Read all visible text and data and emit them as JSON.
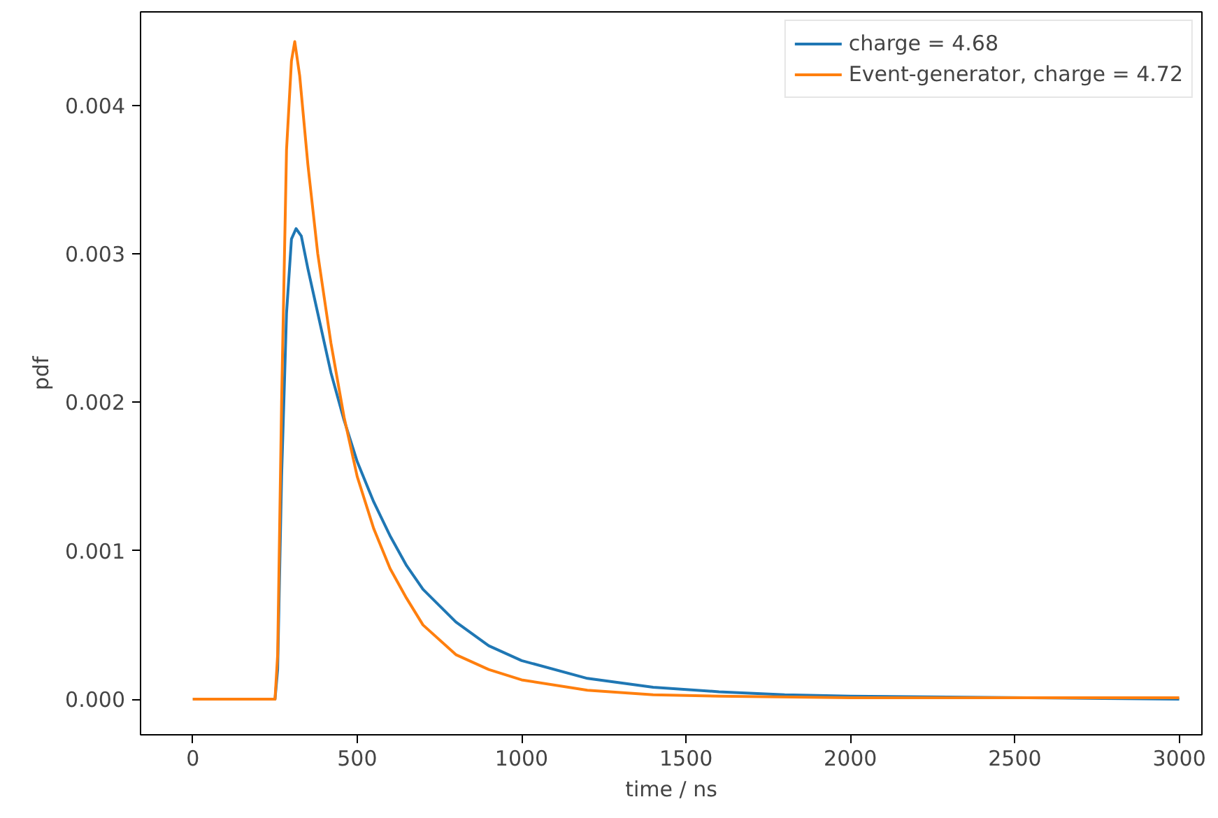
{
  "chart_data": {
    "type": "line",
    "xlabel": "time / ns",
    "ylabel": "pdf",
    "xlim": [
      -159,
      3069
    ],
    "ylim": [
      -0.00024,
      0.00463
    ],
    "xticks": [
      0,
      500,
      1000,
      1500,
      2000,
      2500,
      3000
    ],
    "yticks": [
      {
        "value": 0,
        "label": "0.000"
      },
      {
        "value": 0.001,
        "label": "0.001"
      },
      {
        "value": 0.002,
        "label": "0.002"
      },
      {
        "value": 0.003,
        "label": "0.003"
      },
      {
        "value": 0.004,
        "label": "0.004"
      }
    ],
    "grid": false,
    "legend": "top right",
    "line_style": "solid",
    "marker": "none",
    "series": [
      {
        "name": "charge = 4.68",
        "color": "#1f77b4",
        "x": [
          0,
          250,
          258,
          270,
          285,
          300,
          314,
          330,
          350,
          380,
          420,
          460,
          500,
          550,
          600,
          650,
          700,
          800,
          900,
          1000,
          1200,
          1400,
          1600,
          1800,
          2000,
          3000
        ],
        "values": [
          0,
          0,
          0.0002,
          0.0015,
          0.0026,
          0.0031,
          0.00317,
          0.00312,
          0.0029,
          0.0026,
          0.0022,
          0.00188,
          0.0016,
          0.00133,
          0.0011,
          0.0009,
          0.00074,
          0.00052,
          0.00036,
          0.00026,
          0.00014,
          8e-05,
          5e-05,
          3e-05,
          2e-05,
          0
        ]
      },
      {
        "name": "Event-generator, charge = 4.72",
        "color": "#ff7f0e",
        "x": [
          0,
          250,
          258,
          270,
          285,
          300,
          310,
          325,
          350,
          380,
          420,
          460,
          500,
          550,
          600,
          650,
          700,
          800,
          900,
          1000,
          1200,
          1400,
          1600,
          2000,
          2500,
          3000
        ],
        "values": [
          0,
          0,
          0.0003,
          0.002,
          0.0037,
          0.0043,
          0.00443,
          0.0042,
          0.0036,
          0.003,
          0.0024,
          0.0019,
          0.0015,
          0.00115,
          0.00088,
          0.00068,
          0.0005,
          0.0003,
          0.0002,
          0.00013,
          6e-05,
          3e-05,
          2e-05,
          1e-05,
          1e-05,
          1e-05
        ]
      }
    ]
  }
}
